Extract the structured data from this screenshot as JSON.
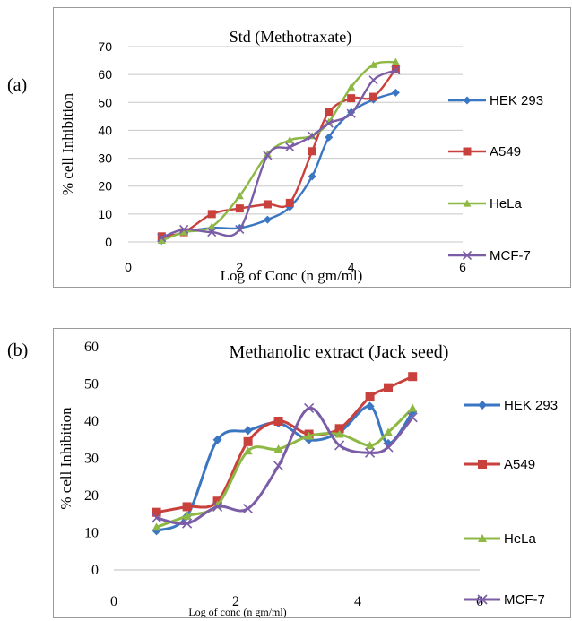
{
  "labels": {
    "a": "(a)",
    "b": "(b)"
  },
  "chart_data": [
    {
      "type": "line",
      "title": "Std (Methotraxate)",
      "xlabel": "Log of Conc (n gm/ml)",
      "ylabel": "% cell Inhibition",
      "xlim": [
        0,
        6
      ],
      "ylim": [
        0,
        70
      ],
      "xticks": [
        "0",
        "2",
        "4",
        "6"
      ],
      "yticks": [
        "0",
        "10",
        "20",
        "30",
        "40",
        "50",
        "60",
        "70"
      ],
      "grid": true,
      "legend": "right",
      "series": [
        {
          "name": "HEK 293",
          "color": "#3b76c3",
          "marker": "diamond",
          "x": [
            0.6,
            1.0,
            1.5,
            2.0,
            2.5,
            2.9,
            3.3,
            3.6,
            4.0,
            4.4,
            4.8
          ],
          "y": [
            0.5,
            3.5,
            5,
            5,
            8,
            12.5,
            23.5,
            37.5,
            46.5,
            51,
            53.5
          ]
        },
        {
          "name": "A549",
          "color": "#c9413c",
          "marker": "square",
          "x": [
            0.6,
            1.0,
            1.5,
            2.0,
            2.5,
            2.9,
            3.3,
            3.6,
            4.0,
            4.4,
            4.8
          ],
          "y": [
            2,
            3.5,
            10,
            12,
            13.5,
            14,
            32.5,
            46.5,
            51.5,
            52,
            62
          ]
        },
        {
          "name": "HeLa",
          "color": "#8db844",
          "marker": "triangle",
          "x": [
            0.6,
            1.0,
            1.5,
            2.0,
            2.5,
            2.9,
            3.3,
            3.6,
            4.0,
            4.4,
            4.8
          ],
          "y": [
            0.5,
            3.5,
            5.5,
            16.5,
            31.5,
            36.5,
            38,
            43,
            55.5,
            63.5,
            64.5
          ]
        },
        {
          "name": "MCF-7",
          "color": "#7b5ca6",
          "marker": "x",
          "x": [
            0.6,
            1.0,
            1.5,
            2.0,
            2.5,
            2.9,
            3.3,
            3.6,
            4.0,
            4.4,
            4.8
          ],
          "y": [
            1.5,
            4.5,
            3.5,
            4.5,
            31,
            34,
            38,
            42.5,
            46,
            58,
            61.5
          ]
        }
      ]
    },
    {
      "type": "line",
      "title": "Methanolic extract (Jack seed)",
      "xlabel": "Log of conc (n gm/ml)",
      "ylabel": "% cell Inhibition",
      "xlim": [
        0,
        6
      ],
      "ylim": [
        0,
        60
      ],
      "xticks": [
        "0",
        "2",
        "4",
        "6"
      ],
      "yticks": [
        "0",
        "10",
        "20",
        "30",
        "40",
        "50",
        "60"
      ],
      "grid": false,
      "legend": "right",
      "series": [
        {
          "name": "HEK 293",
          "color": "#3b76c3",
          "marker": "diamond",
          "x": [
            0.7,
            1.2,
            1.7,
            2.2,
            2.7,
            3.2,
            3.7,
            4.2,
            4.5,
            4.9
          ],
          "y": [
            10.5,
            14.5,
            35,
            37.5,
            39.5,
            35,
            37,
            44,
            34,
            42.5
          ]
        },
        {
          "name": "A549",
          "color": "#c9413c",
          "marker": "square",
          "x": [
            0.7,
            1.2,
            1.7,
            2.2,
            2.7,
            3.2,
            3.7,
            4.2,
            4.5,
            4.9
          ],
          "y": [
            15.5,
            17,
            18.5,
            34.5,
            40,
            36.5,
            38,
            46.5,
            49,
            52
          ]
        },
        {
          "name": "HeLa",
          "color": "#8db844",
          "marker": "triangle",
          "x": [
            0.7,
            1.2,
            1.7,
            2.2,
            2.7,
            3.2,
            3.7,
            4.2,
            4.5,
            4.9
          ],
          "y": [
            11.5,
            14.5,
            17.5,
            32,
            32.5,
            36,
            36.5,
            33.5,
            37,
            43.5
          ]
        },
        {
          "name": "MCF-7",
          "color": "#7b5ca6",
          "marker": "x",
          "x": [
            0.7,
            1.2,
            1.7,
            2.2,
            2.7,
            3.2,
            3.7,
            4.2,
            4.5,
            4.9
          ],
          "y": [
            14,
            12.5,
            17,
            16.5,
            28,
            43.5,
            33.5,
            31.5,
            33,
            41
          ]
        }
      ]
    }
  ]
}
